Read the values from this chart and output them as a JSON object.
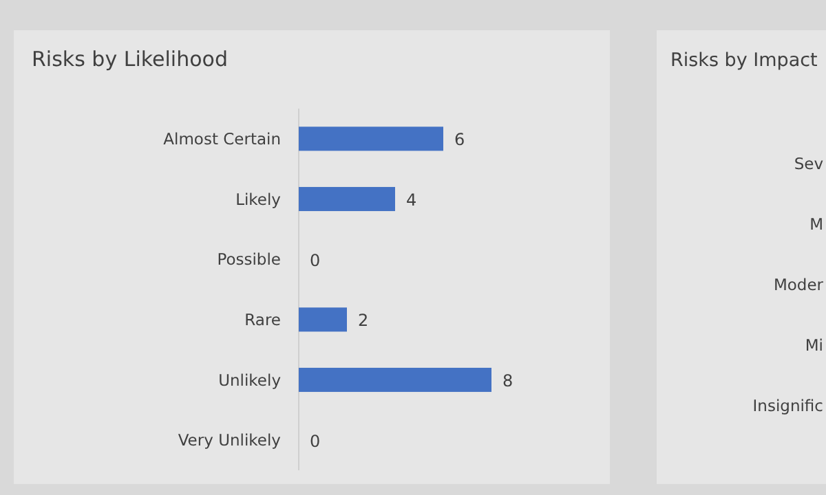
{
  "chart_data": [
    {
      "type": "bar",
      "title": "Risks by Likelihood",
      "orientation": "horizontal",
      "categories": [
        "Almost Certain",
        "Likely",
        "Possible",
        "Rare",
        "Unlikely",
        "Very Unlikely"
      ],
      "values": [
        6,
        4,
        0,
        2,
        8,
        0
      ],
      "color": "#4472c4",
      "data_labels": true
    },
    {
      "type": "other",
      "title": "Risks by Impact",
      "annotations": [
        "Sev",
        "M",
        "Moder",
        "Mi",
        "Insignific"
      ]
    }
  ]
}
